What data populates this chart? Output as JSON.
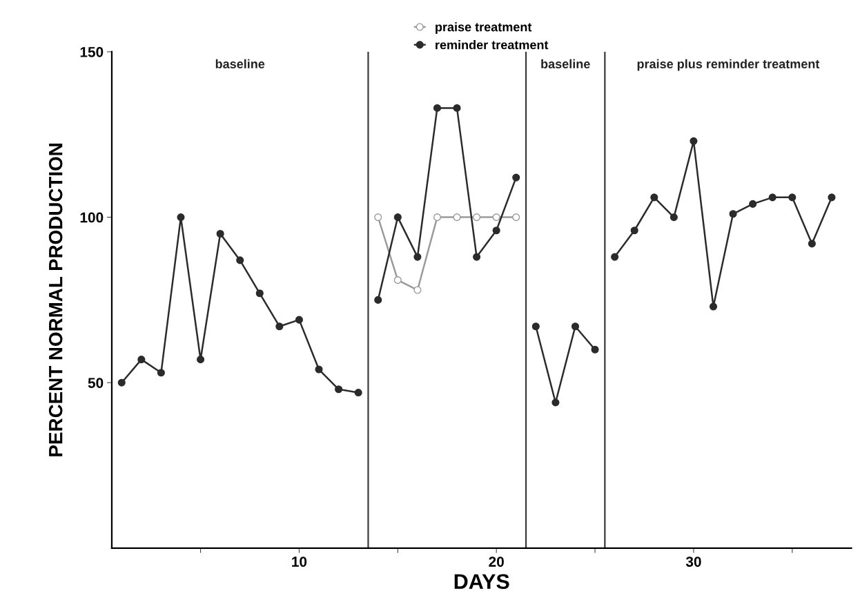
{
  "chart_data": {
    "type": "line",
    "xlabel": "DAYS",
    "ylabel": "PERCENT NORMAL PRODUCTION",
    "xlim": [
      0.5,
      38
    ],
    "ylim": [
      0,
      150
    ],
    "xticks": [
      {
        "value": 5,
        "label": null
      },
      10,
      {
        "value": 15,
        "label": null
      },
      20,
      {
        "value": 25,
        "label": null
      },
      30,
      {
        "value": 35,
        "label": null
      }
    ],
    "yticks": [
      50,
      100,
      150
    ],
    "grid": false,
    "legend": "top",
    "line_style": "solid",
    "series": [
      {
        "color": "#2b2b2b",
        "marker": "circle",
        "x": [
          1,
          2,
          3,
          4,
          5,
          6,
          7,
          8,
          9,
          10,
          11,
          12,
          13
        ],
        "values": [
          50,
          57,
          53,
          100,
          57,
          95,
          87,
          77,
          67,
          69,
          54,
          48,
          47
        ]
      },
      {
        "name": "praise treatment",
        "color": "#9a9a9a",
        "marker": "open circle",
        "x": [
          14,
          15,
          16,
          17,
          18,
          19,
          20,
          21
        ],
        "values": [
          100,
          81,
          78,
          100,
          100,
          100,
          100,
          100
        ]
      },
      {
        "name": "reminder treatment",
        "color": "#2b2b2b",
        "marker": "circle",
        "x": [
          14,
          15,
          16,
          17,
          18,
          19,
          20,
          21
        ],
        "values": [
          75,
          100,
          88,
          133,
          133,
          88,
          96,
          112
        ]
      },
      {
        "color": "#2b2b2b",
        "marker": "circle",
        "x": [
          22,
          23,
          24,
          25
        ],
        "values": [
          67,
          44,
          67,
          60
        ]
      },
      {
        "color": "#2b2b2b",
        "marker": "circle",
        "x": [
          26,
          27,
          28,
          29,
          30,
          31,
          32,
          33,
          34,
          35,
          36,
          37
        ],
        "values": [
          88,
          96,
          106,
          100,
          123,
          73,
          101,
          104,
          106,
          106,
          92,
          106
        ]
      }
    ],
    "ref_lines": [
      {
        "axis": "x",
        "value": 13.5,
        "color": "#3a3a3a"
      },
      {
        "axis": "x",
        "value": 21.5,
        "color": "#3a3a3a"
      },
      {
        "axis": "x",
        "value": 25.5,
        "color": "#3a3a3a"
      }
    ],
    "annotations": [
      "baseline",
      "baseline",
      "praise plus reminder treatment"
    ]
  }
}
